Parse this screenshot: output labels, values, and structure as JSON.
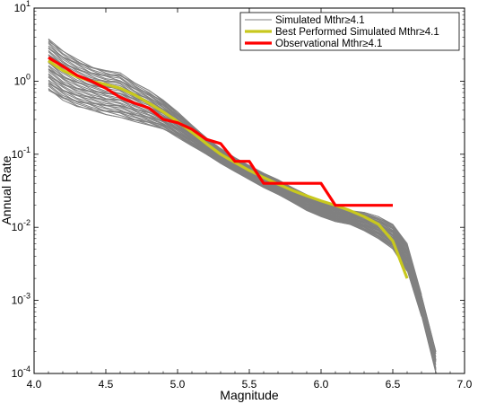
{
  "chart_data": {
    "type": "line",
    "xlabel": "Magnitude",
    "ylabel": "Annual Rate",
    "xlim": [
      4.0,
      7.0
    ],
    "ylim": [
      0.0001,
      10
    ],
    "yscale": "log",
    "grid": false,
    "legend_position": "top-right",
    "x_ticks": [
      "4.0",
      "4.5",
      "5.0",
      "5.5",
      "6.0",
      "6.5",
      "7.0"
    ],
    "y_ticks": [
      {
        "base": "10",
        "exp": "1",
        "value": 10
      },
      {
        "base": "10",
        "exp": "0",
        "value": 1
      },
      {
        "base": "10",
        "exp": "-1",
        "value": 0.1
      },
      {
        "base": "10",
        "exp": "-2",
        "value": 0.01
      },
      {
        "base": "10",
        "exp": "-3",
        "value": 0.001
      },
      {
        "base": "10",
        "exp": "-4",
        "value": 0.0001
      }
    ],
    "legend": [
      {
        "label": "Simulated Mthr≥4.1",
        "color": "#808080"
      },
      {
        "label": "Best Performed Simulated Mthr≥4.1",
        "color": "#c8c81e"
      },
      {
        "label": "Observational Mthr≥4.1",
        "color": "#ff0000"
      }
    ],
    "simulated_envelope": {
      "color": "#808080",
      "count": 40,
      "magnitude": [
        4.1,
        4.2,
        4.3,
        4.4,
        4.5,
        4.6,
        4.7,
        4.8,
        4.9,
        5.0,
        5.1,
        5.2,
        5.3,
        5.4,
        5.5,
        5.6,
        5.7,
        5.8,
        5.9,
        6.0,
        6.1,
        6.2,
        6.3,
        6.4,
        6.5,
        6.6,
        6.7,
        6.8
      ],
      "upper": [
        3.8,
        2.6,
        2.0,
        1.6,
        1.4,
        1.3,
        0.95,
        0.75,
        0.55,
        0.38,
        0.25,
        0.17,
        0.12,
        0.09,
        0.07,
        0.055,
        0.045,
        0.035,
        0.028,
        0.022,
        0.019,
        0.017,
        0.016,
        0.014,
        0.011,
        0.006,
        0.0012,
        0.0002
      ],
      "lower": [
        0.75,
        0.55,
        0.45,
        0.4,
        0.35,
        0.32,
        0.28,
        0.25,
        0.22,
        0.17,
        0.13,
        0.1,
        0.075,
        0.058,
        0.045,
        0.035,
        0.028,
        0.022,
        0.017,
        0.014,
        0.012,
        0.011,
        0.009,
        0.007,
        0.005,
        0.0025,
        0.0006,
        0.0001
      ]
    },
    "series": [
      {
        "name": "Best Performed Simulated Mthr≥4.1",
        "color": "#c8c81e",
        "x": [
          4.1,
          4.2,
          4.3,
          4.4,
          4.5,
          4.6,
          4.7,
          4.8,
          4.9,
          5.0,
          5.1,
          5.2,
          5.3,
          5.4,
          5.5,
          5.6,
          5.7,
          5.8,
          5.9,
          6.0,
          6.1,
          6.2,
          6.3,
          6.4,
          6.5,
          6.6
        ],
        "y": [
          1.9,
          1.4,
          1.15,
          1.0,
          0.9,
          0.8,
          0.65,
          0.5,
          0.38,
          0.28,
          0.2,
          0.14,
          0.1,
          0.077,
          0.06,
          0.048,
          0.039,
          0.032,
          0.027,
          0.023,
          0.02,
          0.017,
          0.014,
          0.011,
          0.0065,
          0.002
        ]
      },
      {
        "name": "Observational Mthr≥4.1",
        "color": "#ff0000",
        "x": [
          4.1,
          4.2,
          4.3,
          4.4,
          4.5,
          4.6,
          4.7,
          4.8,
          4.9,
          5.0,
          5.1,
          5.2,
          5.3,
          5.4,
          5.5,
          5.6,
          5.7,
          5.8,
          5.9,
          6.0,
          6.1,
          6.2,
          6.3,
          6.4,
          6.5
        ],
        "y": [
          2.1,
          1.6,
          1.2,
          1.0,
          0.8,
          0.6,
          0.5,
          0.43,
          0.3,
          0.27,
          0.22,
          0.16,
          0.14,
          0.08,
          0.08,
          0.04,
          0.04,
          0.04,
          0.04,
          0.04,
          0.02,
          0.02,
          0.02,
          0.02,
          0.02
        ]
      }
    ]
  }
}
